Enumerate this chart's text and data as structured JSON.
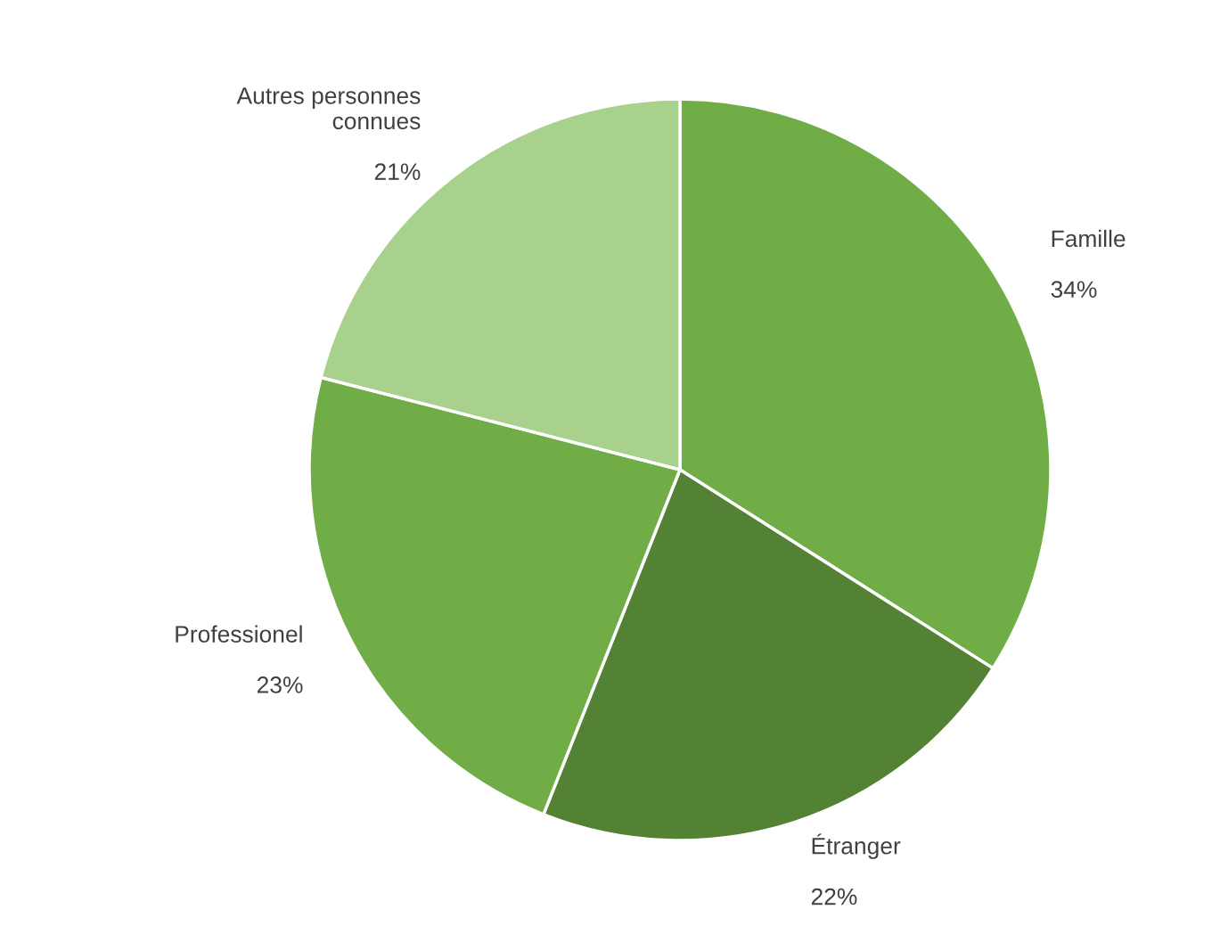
{
  "chart_data": {
    "type": "pie",
    "categories": [
      "Famille",
      "Étranger",
      "Professionel",
      "Autres personnes connues"
    ],
    "values": [
      34,
      22,
      23,
      21
    ],
    "colors": [
      "#70ad47",
      "#548235",
      "#70ad47",
      "#a9d18e"
    ],
    "value_labels": [
      "34%",
      "22%",
      "23%",
      "21%"
    ]
  }
}
